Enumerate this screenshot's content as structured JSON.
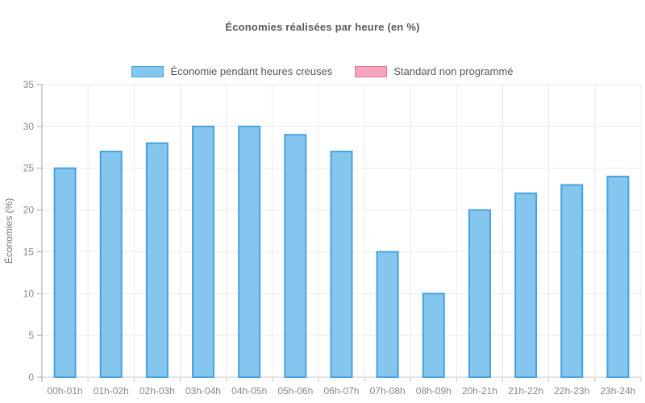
{
  "chart": {
    "title": "Économies réalisées par heure (en %)",
    "y_axis_title": "Économies (%)"
  },
  "legend": {
    "items": [
      {
        "label": "Économie pendant heures creuses",
        "fill": "#85c6ee",
        "border": "#46a2e0"
      },
      {
        "label": "Standard non programmé",
        "fill": "#f6a6bc",
        "border": "#ef7293"
      }
    ]
  },
  "chart_data": {
    "type": "bar",
    "title": "Économies réalisées par heure (en %)",
    "xlabel": "",
    "ylabel": "Économies (%)",
    "categories": [
      "00h-01h",
      "01h-02h",
      "02h-03h",
      "03h-04h",
      "04h-05h",
      "05h-06h",
      "06h-07h",
      "07h-08h",
      "08h-09h",
      "20h-21h",
      "21h-22h",
      "22h-23h",
      "23h-24h"
    ],
    "series": [
      {
        "name": "Économie pendant heures creuses",
        "fill": "#85c6ee",
        "border": "#46a2e0",
        "values": [
          25,
          27,
          28,
          30,
          30,
          29,
          27,
          15,
          10,
          20,
          22,
          23,
          24
        ]
      },
      {
        "name": "Standard non programmé",
        "fill": "#f6a6bc",
        "border": "#ef7293",
        "values": []
      }
    ],
    "ylim": [
      0,
      35
    ],
    "ytick_step": 5,
    "grid": true,
    "legend_position": "top",
    "colors": {
      "grid_line": "#eaeaea",
      "zero_line": "#c9c9c9",
      "axis_line": "#a3a3a3",
      "tick_label": "#87888a",
      "axis_title": "#76777a"
    }
  }
}
